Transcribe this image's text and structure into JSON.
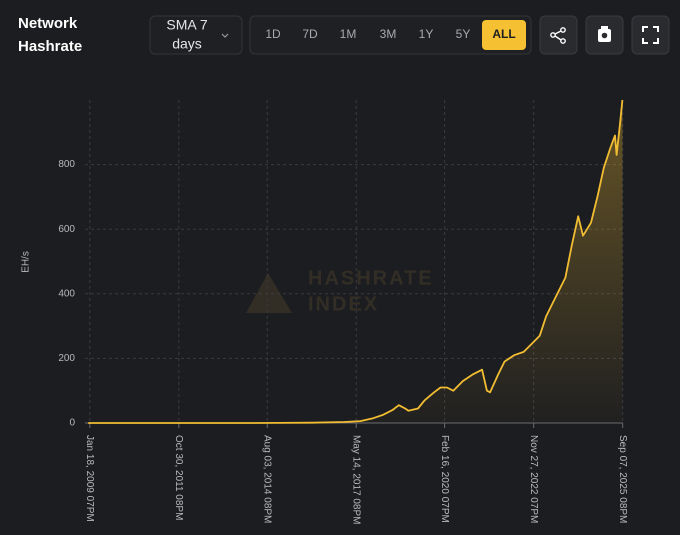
{
  "ui": {
    "title_line1": "Network",
    "title_line2": "Hashrate",
    "dropdown_line1": "SMA 7",
    "dropdown_line2": "days",
    "ranges": [
      "1D",
      "7D",
      "1M",
      "3M",
      "1Y",
      "5Y",
      "ALL"
    ],
    "active_range": "ALL",
    "watermark_line1": "HASHRATE",
    "watermark_line2": "INDEX"
  },
  "chart_data": {
    "type": "area",
    "y_label": "EH/s",
    "x": [
      2009.0,
      2012.0,
      2014.0,
      2015.0,
      2016.0,
      2017.0,
      2017.5,
      2017.9,
      2018.2,
      2018.5,
      2018.7,
      2018.9,
      2019.0,
      2019.3,
      2019.5,
      2019.8,
      2020.0,
      2020.2,
      2020.4,
      2020.7,
      2021.0,
      2021.3,
      2021.45,
      2021.55,
      2021.8,
      2022.0,
      2022.3,
      2022.6,
      2022.9,
      2023.1,
      2023.3,
      2023.6,
      2023.9,
      2024.1,
      2024.3,
      2024.45,
      2024.7,
      2024.9,
      2025.1,
      2025.3,
      2025.45,
      2025.5,
      2025.6,
      2025.68
    ],
    "series": [
      {
        "name": "Hashrate",
        "color": "#f2bd33",
        "values": [
          0,
          0,
          0.1,
          0.4,
          1,
          3,
          6,
          15,
          25,
          40,
          55,
          45,
          38,
          45,
          70,
          95,
          110,
          110,
          100,
          130,
          150,
          165,
          100,
          95,
          150,
          190,
          210,
          220,
          250,
          270,
          330,
          390,
          450,
          550,
          640,
          580,
          620,
          700,
          790,
          850,
          890,
          830,
          920,
          1000
        ]
      }
    ],
    "xlim": [
      2008.9,
      2025.7
    ],
    "xticks": [
      {
        "value": 2009.05,
        "label": "Jan 18, 2009 07PM"
      },
      {
        "value": 2011.83,
        "label": "Oct 30, 2011 08PM"
      },
      {
        "value": 2014.59,
        "label": "Aug 03, 2014 08PM"
      },
      {
        "value": 2017.37,
        "label": "May 14, 2017 08PM"
      },
      {
        "value": 2020.13,
        "label": "Feb 16, 2020 07PM"
      },
      {
        "value": 2022.91,
        "label": "Nov 27, 2022 07PM"
      },
      {
        "value": 2025.69,
        "label": "Sep 07, 2025 08PM"
      }
    ],
    "ylim": [
      0,
      1000
    ],
    "yticks": [
      0,
      200,
      400,
      600,
      800
    ],
    "grid": true
  }
}
